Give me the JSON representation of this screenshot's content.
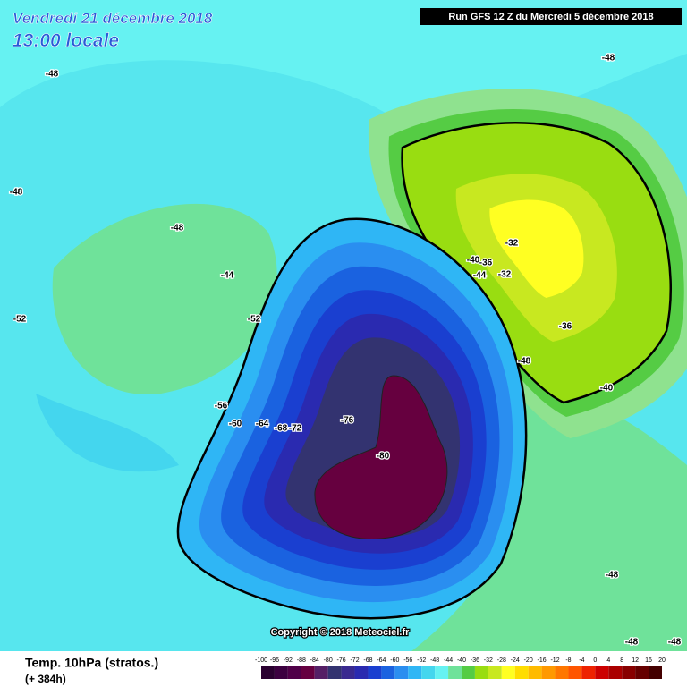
{
  "header": {
    "date": "Vendredi 21 décembre 2018",
    "time": "13:00 locale",
    "run": "Run GFS 12 Z du Mercredi 5 décembre 2018"
  },
  "map": {
    "contour_labels": [
      -48,
      -48,
      -48,
      -48,
      -44,
      -52,
      -52,
      -56,
      -60,
      -64,
      -68,
      -72,
      -76,
      -80,
      -32,
      -40,
      -36,
      -32,
      -44,
      -36,
      -48,
      -40,
      -48,
      -48,
      -48
    ],
    "copyright": "Copyright © 2018 Meteociel.fr"
  },
  "footer": {
    "caption": "Temp. 10hPa (stratos.)",
    "lead": "(+ 384h)",
    "scale": [
      -100,
      -96,
      -92,
      -88,
      -84,
      -80,
      -76,
      -72,
      -68,
      -64,
      -60,
      -56,
      -52,
      -48,
      -44,
      -40,
      -36,
      -32,
      -28,
      -24,
      -20,
      -16,
      -12,
      -8,
      -4,
      0,
      4,
      8,
      12,
      16,
      20
    ]
  }
}
